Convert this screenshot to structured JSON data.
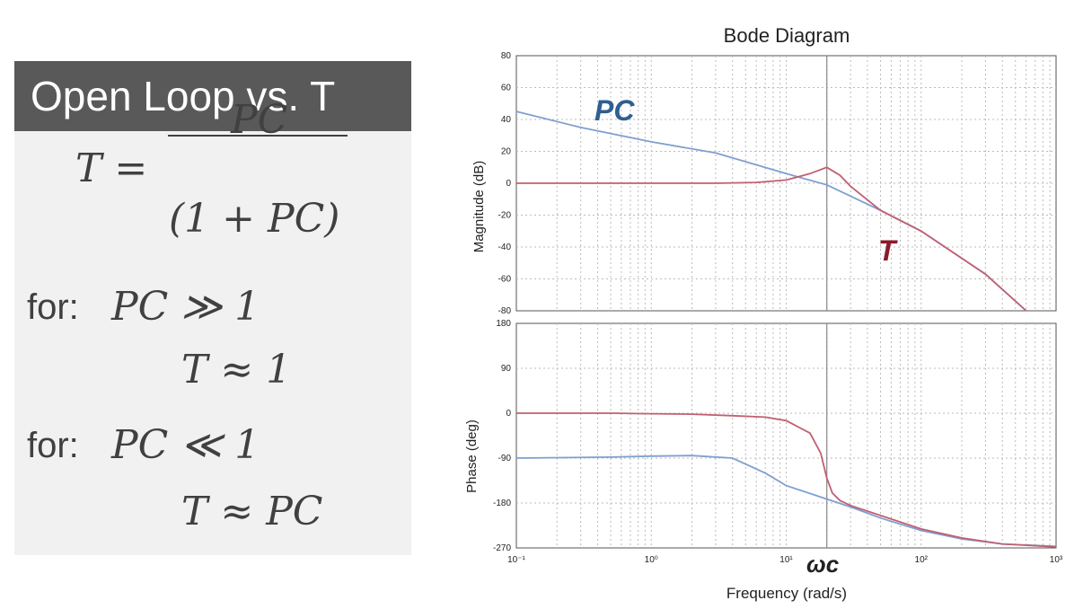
{
  "panel": {
    "title": "Open Loop vs. T",
    "eq_lhs": "T =",
    "eq_numerator": "PC",
    "eq_denominator": "(1 + PC)",
    "case1_label": "for:",
    "case1_condition": "PC ≫ 1",
    "case1_result": "T ≈ 1",
    "case2_label": "for:",
    "case2_condition": "PC ≪ 1",
    "case2_result": "T ≈ PC"
  },
  "colors": {
    "pc_series": "#7f9fcf",
    "t_series": "#c06070",
    "pc_label": "#2e5f8f",
    "t_label": "#8b1a2b",
    "panel_header": "#595959",
    "panel_bg": "#f1f1f1"
  },
  "chart_data": {
    "type": "line",
    "title": "Bode Diagram",
    "xlabel": "Frequency  (rad/s)",
    "x_scale": "log",
    "xlim": [
      0.1,
      1000
    ],
    "x_ticks": [
      0.1,
      1,
      10,
      100,
      1000
    ],
    "x_tick_labels": [
      "10⁻¹",
      "10⁰",
      "10¹",
      "10²",
      "10³"
    ],
    "crossover_label": "ωc",
    "crossover_x": 20,
    "grid": true,
    "subplots": [
      {
        "ylabel": "Magnitude (dB)",
        "ylim": [
          -80,
          80
        ],
        "y_ticks": [
          80,
          60,
          40,
          20,
          0,
          -20,
          -40,
          -60,
          -80
        ],
        "series": [
          {
            "name": "PC",
            "x": [
              0.1,
              0.3,
              1,
              3,
              10,
              20,
              50,
              100,
              300,
              600
            ],
            "y": [
              45,
              35,
              26,
              19,
              6,
              -1,
              -17,
              -30,
              -57,
              -80
            ]
          },
          {
            "name": "T",
            "x": [
              0.1,
              1,
              3,
              6,
              10,
              15,
              20,
              25,
              30,
              50,
              100,
              300,
              600
            ],
            "y": [
              0,
              0,
              0,
              0.5,
              2,
              6,
              10,
              5,
              -2,
              -17,
              -30,
              -57,
              -80
            ]
          }
        ]
      },
      {
        "ylabel": "Phase (deg)",
        "ylim": [
          -270,
          180
        ],
        "y_ticks": [
          180,
          90,
          0,
          -90,
          -180,
          -270
        ],
        "series": [
          {
            "name": "PC",
            "x": [
              0.1,
              0.5,
              1,
              2,
              4,
              7,
              10,
              20,
              30,
              50,
              100,
              200,
              400,
              1000
            ],
            "y": [
              -90,
              -88,
              -86,
              -85,
              -90,
              -120,
              -145,
              -172,
              -188,
              -210,
              -235,
              -252,
              -262,
              -267
            ]
          },
          {
            "name": "T",
            "x": [
              0.1,
              0.5,
              1,
              2,
              4,
              7,
              10,
              15,
              18,
              20,
              22,
              25,
              30,
              50,
              100,
              200,
              400,
              1000
            ],
            "y": [
              0,
              0,
              -1,
              -2,
              -5,
              -8,
              -15,
              -40,
              -80,
              -130,
              -160,
              -175,
              -185,
              -205,
              -232,
              -250,
              -262,
              -268
            ]
          }
        ]
      }
    ]
  }
}
